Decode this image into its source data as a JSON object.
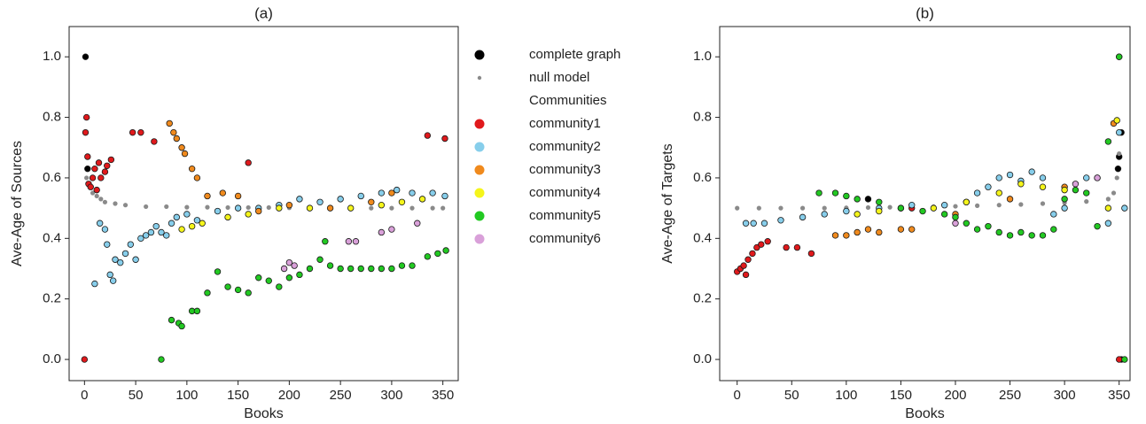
{
  "chart_data": [
    {
      "type": "scatter",
      "title": "(a)",
      "x_label": "Books",
      "y_label": "Ave-Age of Sources",
      "xlim": [
        -15,
        365
      ],
      "ylim": [
        -0.07,
        1.1
      ],
      "xticks": [
        0,
        50,
        100,
        150,
        200,
        250,
        300,
        350
      ],
      "yticks": [
        {
          "value": 0,
          "label": "0.0"
        },
        {
          "value": 0.2,
          "label": "0.2"
        },
        {
          "value": 0.4,
          "label": "0.4"
        },
        {
          "value": 0.6,
          "label": "0.6"
        },
        {
          "value": 0.8,
          "label": "0.8"
        },
        {
          "value": 1.0,
          "label": "1.0"
        }
      ],
      "legend": true,
      "legend_title": "Communities",
      "series": [
        {
          "name": "complete graph",
          "color": "#000000",
          "x": [
            1,
            3
          ],
          "values": [
            1.0,
            0.63
          ]
        },
        {
          "name": "null model",
          "color": "#8a8a8a",
          "x": [
            2,
            5,
            8,
            12,
            16,
            20,
            30,
            40,
            60,
            80,
            100,
            120,
            140,
            160,
            180,
            200,
            220,
            240,
            260,
            280,
            300,
            320,
            340,
            350
          ],
          "values": [
            0.6,
            0.57,
            0.55,
            0.54,
            0.53,
            0.52,
            0.515,
            0.51,
            0.505,
            0.505,
            0.503,
            0.503,
            0.502,
            0.502,
            0.502,
            0.501,
            0.501,
            0.501,
            0.5,
            0.5,
            0.5,
            0.5,
            0.5,
            0.5
          ]
        },
        {
          "name": "community1",
          "color": "#e0191c",
          "x": [
            0,
            1,
            2,
            3,
            4,
            6,
            8,
            10,
            12,
            14,
            16,
            20,
            22,
            26,
            47,
            55,
            68,
            160,
            335,
            352
          ],
          "values": [
            0.0,
            0.75,
            0.8,
            0.67,
            0.58,
            0.57,
            0.6,
            0.63,
            0.56,
            0.65,
            0.6,
            0.62,
            0.64,
            0.66,
            0.75,
            0.75,
            0.72,
            0.65,
            0.74,
            0.73
          ]
        },
        {
          "name": "community2",
          "color": "#87ceeb",
          "x": [
            10,
            15,
            20,
            22,
            25,
            28,
            30,
            35,
            40,
            45,
            50,
            55,
            60,
            65,
            70,
            75,
            80,
            85,
            90,
            100,
            110,
            130,
            150,
            170,
            190,
            210,
            230,
            250,
            270,
            290,
            305,
            320,
            340,
            352
          ],
          "values": [
            0.25,
            0.45,
            0.43,
            0.38,
            0.28,
            0.26,
            0.33,
            0.32,
            0.35,
            0.38,
            0.33,
            0.4,
            0.41,
            0.42,
            0.44,
            0.42,
            0.41,
            0.45,
            0.47,
            0.48,
            0.46,
            0.49,
            0.5,
            0.5,
            0.51,
            0.53,
            0.52,
            0.53,
            0.54,
            0.55,
            0.56,
            0.55,
            0.55,
            0.54
          ]
        },
        {
          "name": "community3",
          "color": "#f08a1d",
          "x": [
            83,
            87,
            90,
            95,
            98,
            105,
            110,
            120,
            135,
            150,
            170,
            200,
            240,
            280,
            300
          ],
          "values": [
            0.78,
            0.75,
            0.73,
            0.7,
            0.68,
            0.63,
            0.6,
            0.54,
            0.55,
            0.54,
            0.49,
            0.51,
            0.5,
            0.52,
            0.55
          ]
        },
        {
          "name": "community4",
          "color": "#f5f51b",
          "x": [
            95,
            105,
            115,
            140,
            160,
            190,
            220,
            260,
            290,
            310,
            330
          ],
          "values": [
            0.43,
            0.44,
            0.45,
            0.47,
            0.48,
            0.5,
            0.5,
            0.5,
            0.51,
            0.52,
            0.53
          ]
        },
        {
          "name": "community5",
          "color": "#22c922",
          "x": [
            75,
            85,
            92,
            95,
            105,
            110,
            120,
            130,
            140,
            150,
            160,
            170,
            180,
            190,
            200,
            210,
            220,
            230,
            235,
            240,
            250,
            260,
            270,
            280,
            290,
            300,
            310,
            320,
            335,
            345,
            353
          ],
          "values": [
            0.0,
            0.13,
            0.12,
            0.11,
            0.16,
            0.16,
            0.22,
            0.29,
            0.24,
            0.23,
            0.22,
            0.27,
            0.26,
            0.24,
            0.27,
            0.28,
            0.3,
            0.33,
            0.39,
            0.31,
            0.3,
            0.3,
            0.3,
            0.3,
            0.3,
            0.3,
            0.31,
            0.31,
            0.34,
            0.35,
            0.36
          ]
        },
        {
          "name": "community6",
          "color": "#d9a0d9",
          "x": [
            195,
            200,
            205,
            258,
            265,
            290,
            300,
            325
          ],
          "values": [
            0.3,
            0.32,
            0.31,
            0.39,
            0.39,
            0.42,
            0.43,
            0.45
          ]
        }
      ]
    },
    {
      "type": "scatter",
      "title": "(b)",
      "x_label": "Books",
      "y_label": "Ave-Age of Targets",
      "xlim": [
        -16,
        360
      ],
      "ylim": [
        -0.07,
        1.1
      ],
      "xticks": [
        0,
        50,
        100,
        150,
        200,
        250,
        300,
        350
      ],
      "yticks": [
        {
          "value": 0,
          "label": "0.0"
        },
        {
          "value": 0.2,
          "label": "0.2"
        },
        {
          "value": 0.4,
          "label": "0.4"
        },
        {
          "value": 0.6,
          "label": "0.6"
        },
        {
          "value": 0.8,
          "label": "0.8"
        },
        {
          "value": 1.0,
          "label": "1.0"
        }
      ],
      "series": [
        {
          "color": "#000000",
          "x": [
            350,
            352,
            350,
            349,
            352,
            120
          ],
          "values": [
            1.0,
            0.75,
            0.67,
            0.63,
            0.0,
            0.53
          ]
        },
        {
          "color": "#8a8a8a",
          "x": [
            0,
            20,
            40,
            60,
            80,
            100,
            120,
            140,
            160,
            180,
            200,
            220,
            240,
            260,
            280,
            300,
            320,
            340,
            345,
            348,
            350
          ],
          "values": [
            0.5,
            0.5,
            0.5,
            0.5,
            0.5,
            0.501,
            0.502,
            0.503,
            0.504,
            0.505,
            0.506,
            0.508,
            0.51,
            0.512,
            0.515,
            0.518,
            0.522,
            0.53,
            0.55,
            0.6,
            0.68
          ]
        },
        {
          "color": "#e0191c",
          "x": [
            0,
            3,
            6,
            8,
            10,
            14,
            18,
            22,
            28,
            45,
            55,
            68,
            160,
            350
          ],
          "values": [
            0.29,
            0.3,
            0.31,
            0.28,
            0.33,
            0.35,
            0.37,
            0.38,
            0.39,
            0.37,
            0.37,
            0.35,
            0.5,
            0.0
          ]
        },
        {
          "color": "#87ceeb",
          "x": [
            8,
            15,
            25,
            40,
            60,
            80,
            100,
            130,
            160,
            190,
            210,
            220,
            230,
            240,
            250,
            260,
            270,
            280,
            290,
            300,
            320,
            340,
            350,
            355
          ],
          "values": [
            0.45,
            0.45,
            0.45,
            0.46,
            0.47,
            0.48,
            0.49,
            0.5,
            0.51,
            0.51,
            0.52,
            0.55,
            0.57,
            0.6,
            0.61,
            0.59,
            0.62,
            0.6,
            0.48,
            0.5,
            0.6,
            0.45,
            0.75,
            0.5
          ]
        },
        {
          "color": "#f08a1d",
          "x": [
            90,
            100,
            110,
            120,
            130,
            150,
            160,
            200,
            250,
            300,
            330,
            345
          ],
          "values": [
            0.41,
            0.41,
            0.42,
            0.43,
            0.42,
            0.43,
            0.43,
            0.48,
            0.53,
            0.57,
            0.6,
            0.78
          ]
        },
        {
          "color": "#f5f51b",
          "x": [
            110,
            130,
            150,
            180,
            210,
            240,
            260,
            280,
            300,
            340,
            348
          ],
          "values": [
            0.48,
            0.49,
            0.5,
            0.5,
            0.52,
            0.55,
            0.58,
            0.57,
            0.56,
            0.5,
            0.79
          ]
        },
        {
          "color": "#22c922",
          "x": [
            75,
            90,
            100,
            110,
            130,
            150,
            170,
            190,
            200,
            210,
            220,
            230,
            240,
            250,
            260,
            270,
            280,
            290,
            300,
            310,
            320,
            330,
            340,
            350,
            355
          ],
          "values": [
            0.55,
            0.55,
            0.54,
            0.53,
            0.52,
            0.5,
            0.49,
            0.48,
            0.47,
            0.45,
            0.43,
            0.44,
            0.42,
            0.41,
            0.42,
            0.41,
            0.41,
            0.43,
            0.53,
            0.56,
            0.55,
            0.44,
            0.72,
            1.0,
            0.0
          ]
        },
        {
          "color": "#d9a0d9",
          "x": [
            200,
            310,
            330
          ],
          "values": [
            0.45,
            0.58,
            0.6
          ]
        }
      ]
    }
  ]
}
